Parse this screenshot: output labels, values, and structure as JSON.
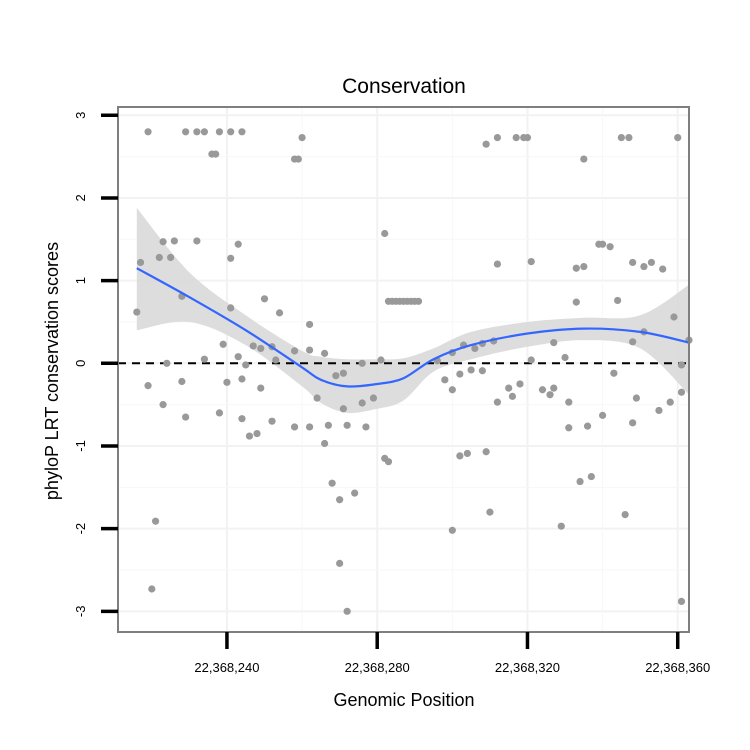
{
  "chart_data": {
    "type": "scatter",
    "title": "Conservation",
    "xlabel": "Genomic Position",
    "ylabel": "phyloP LRT conservation scores",
    "xlim": [
      22368211,
      22368363
    ],
    "ylim": [
      -3.25,
      3.1
    ],
    "x_ticks": [
      22368240,
      22368280,
      22368320,
      22368360
    ],
    "x_tick_labels": [
      "22,368,240",
      "22,368,280",
      "22,368,320",
      "22,368,360"
    ],
    "y_ticks": [
      -3,
      -2,
      -1,
      0,
      1,
      2,
      3
    ],
    "y_tick_labels": [
      "-3",
      "-2",
      "-1",
      "0",
      "1",
      "2",
      "3"
    ],
    "reference_line": {
      "y": 0,
      "style": "dashed",
      "color": "#000000"
    },
    "colors": {
      "points": "#999999",
      "smooth": "#3366ff",
      "ribbon": "#d9d9d9",
      "frame": "#7f7f7f",
      "grid": "#f2f2f2"
    },
    "points": [
      {
        "x": 22368219,
        "y": 2.8
      },
      {
        "x": 22368229,
        "y": 2.8
      },
      {
        "x": 22368232,
        "y": 2.8
      },
      {
        "x": 22368234,
        "y": 2.8
      },
      {
        "x": 22368238,
        "y": 2.8
      },
      {
        "x": 22368241,
        "y": 2.8
      },
      {
        "x": 22368244,
        "y": 2.8
      },
      {
        "x": 22368236,
        "y": 2.53
      },
      {
        "x": 22368237,
        "y": 2.53
      },
      {
        "x": 22368258,
        "y": 2.47
      },
      {
        "x": 22368259,
        "y": 2.47
      },
      {
        "x": 22368260,
        "y": 2.73
      },
      {
        "x": 22368309,
        "y": 2.65
      },
      {
        "x": 22368312,
        "y": 2.73
      },
      {
        "x": 22368317,
        "y": 2.73
      },
      {
        "x": 22368319,
        "y": 2.73
      },
      {
        "x": 22368320,
        "y": 2.73
      },
      {
        "x": 22368335,
        "y": 2.47
      },
      {
        "x": 22368345,
        "y": 2.73
      },
      {
        "x": 22368347,
        "y": 2.73
      },
      {
        "x": 22368360,
        "y": 2.73
      },
      {
        "x": 22368217,
        "y": 1.22
      },
      {
        "x": 22368222,
        "y": 1.28
      },
      {
        "x": 22368223,
        "y": 1.47
      },
      {
        "x": 22368225,
        "y": 1.28
      },
      {
        "x": 22368226,
        "y": 1.48
      },
      {
        "x": 22368232,
        "y": 1.48
      },
      {
        "x": 22368241,
        "y": 1.27
      },
      {
        "x": 22368243,
        "y": 1.44
      },
      {
        "x": 22368282,
        "y": 1.57
      },
      {
        "x": 22368312,
        "y": 1.2
      },
      {
        "x": 22368321,
        "y": 1.23
      },
      {
        "x": 22368333,
        "y": 1.15
      },
      {
        "x": 22368335,
        "y": 1.17
      },
      {
        "x": 22368339,
        "y": 1.44
      },
      {
        "x": 22368340,
        "y": 1.44
      },
      {
        "x": 22368342,
        "y": 1.41
      },
      {
        "x": 22368348,
        "y": 1.22
      },
      {
        "x": 22368351,
        "y": 1.17
      },
      {
        "x": 22368353,
        "y": 1.22
      },
      {
        "x": 22368356,
        "y": 1.14
      },
      {
        "x": 22368216,
        "y": 0.62
      },
      {
        "x": 22368228,
        "y": 0.81
      },
      {
        "x": 22368241,
        "y": 0.67
      },
      {
        "x": 22368250,
        "y": 0.78
      },
      {
        "x": 22368254,
        "y": 0.61
      },
      {
        "x": 22368262,
        "y": 0.47
      },
      {
        "x": 22368283,
        "y": 0.75
      },
      {
        "x": 22368284,
        "y": 0.75
      },
      {
        "x": 22368285,
        "y": 0.75
      },
      {
        "x": 22368286,
        "y": 0.75
      },
      {
        "x": 22368287,
        "y": 0.75
      },
      {
        "x": 22368288,
        "y": 0.75
      },
      {
        "x": 22368289,
        "y": 0.75
      },
      {
        "x": 22368290,
        "y": 0.75
      },
      {
        "x": 22368291,
        "y": 0.75
      },
      {
        "x": 22368333,
        "y": 0.74
      },
      {
        "x": 22368344,
        "y": 0.76
      },
      {
        "x": 22368359,
        "y": 0.56
      },
      {
        "x": 22368363,
        "y": 0.28
      },
      {
        "x": 22368239,
        "y": 0.23
      },
      {
        "x": 22368247,
        "y": 0.21
      },
      {
        "x": 22368249,
        "y": 0.18
      },
      {
        "x": 22368252,
        "y": 0.2
      },
      {
        "x": 22368258,
        "y": 0.15
      },
      {
        "x": 22368262,
        "y": 0.16
      },
      {
        "x": 22368266,
        "y": 0.12
      },
      {
        "x": 22368300,
        "y": 0.13
      },
      {
        "x": 22368303,
        "y": 0.22
      },
      {
        "x": 22368306,
        "y": 0.18
      },
      {
        "x": 22368308,
        "y": 0.24
      },
      {
        "x": 22368311,
        "y": 0.27
      },
      {
        "x": 22368327,
        "y": 0.25
      },
      {
        "x": 22368330,
        "y": 0.07
      },
      {
        "x": 22368348,
        "y": 0.26
      },
      {
        "x": 22368351,
        "y": 0.38
      },
      {
        "x": 22368224,
        "y": 0.0
      },
      {
        "x": 22368234,
        "y": 0.05
      },
      {
        "x": 22368243,
        "y": 0.08
      },
      {
        "x": 22368245,
        "y": -0.02
      },
      {
        "x": 22368253,
        "y": 0.04
      },
      {
        "x": 22368269,
        "y": -0.15
      },
      {
        "x": 22368271,
        "y": -0.12
      },
      {
        "x": 22368276,
        "y": 0.0
      },
      {
        "x": 22368281,
        "y": 0.04
      },
      {
        "x": 22368296,
        "y": 0.03
      },
      {
        "x": 22368298,
        "y": -0.2
      },
      {
        "x": 22368302,
        "y": -0.13
      },
      {
        "x": 22368305,
        "y": -0.08
      },
      {
        "x": 22368308,
        "y": -0.09
      },
      {
        "x": 22368321,
        "y": 0.04
      },
      {
        "x": 22368343,
        "y": -0.12
      },
      {
        "x": 22368361,
        "y": -0.02
      },
      {
        "x": 22368219,
        "y": -0.27
      },
      {
        "x": 22368228,
        "y": -0.22
      },
      {
        "x": 22368240,
        "y": -0.23
      },
      {
        "x": 22368244,
        "y": -0.19
      },
      {
        "x": 22368249,
        "y": -0.3
      },
      {
        "x": 22368264,
        "y": -0.42
      },
      {
        "x": 22368271,
        "y": -0.55
      },
      {
        "x": 22368276,
        "y": -0.48
      },
      {
        "x": 22368279,
        "y": -0.42
      },
      {
        "x": 22368300,
        "y": -0.32
      },
      {
        "x": 22368312,
        "y": -0.47
      },
      {
        "x": 22368315,
        "y": -0.3
      },
      {
        "x": 22368316,
        "y": -0.4
      },
      {
        "x": 22368318,
        "y": -0.25
      },
      {
        "x": 22368324,
        "y": -0.32
      },
      {
        "x": 22368326,
        "y": -0.38
      },
      {
        "x": 22368327,
        "y": -0.3
      },
      {
        "x": 22368331,
        "y": -0.47
      },
      {
        "x": 22368349,
        "y": -0.42
      },
      {
        "x": 22368355,
        "y": -0.57
      },
      {
        "x": 22368358,
        "y": -0.47
      },
      {
        "x": 22368361,
        "y": -0.35
      },
      {
        "x": 22368223,
        "y": -0.5
      },
      {
        "x": 22368229,
        "y": -0.65
      },
      {
        "x": 22368238,
        "y": -0.6
      },
      {
        "x": 22368244,
        "y": -0.67
      },
      {
        "x": 22368252,
        "y": -0.7
      },
      {
        "x": 22368258,
        "y": -0.77
      },
      {
        "x": 22368262,
        "y": -0.77
      },
      {
        "x": 22368267,
        "y": -0.75
      },
      {
        "x": 22368272,
        "y": -0.75
      },
      {
        "x": 22368277,
        "y": -0.77
      },
      {
        "x": 22368331,
        "y": -0.78
      },
      {
        "x": 22368336,
        "y": -0.76
      },
      {
        "x": 22368340,
        "y": -0.63
      },
      {
        "x": 22368348,
        "y": -0.72
      },
      {
        "x": 22368246,
        "y": -0.88
      },
      {
        "x": 22368248,
        "y": -0.85
      },
      {
        "x": 22368266,
        "y": -0.97
      },
      {
        "x": 22368282,
        "y": -1.15
      },
      {
        "x": 22368283,
        "y": -1.19
      },
      {
        "x": 22368302,
        "y": -1.12
      },
      {
        "x": 22368304,
        "y": -1.09
      },
      {
        "x": 22368309,
        "y": -1.07
      },
      {
        "x": 22368337,
        "y": -1.37
      },
      {
        "x": 22368334,
        "y": -1.43
      },
      {
        "x": 22368268,
        "y": -1.45
      },
      {
        "x": 22368274,
        "y": -1.57
      },
      {
        "x": 22368270,
        "y": -1.65
      },
      {
        "x": 22368221,
        "y": -1.91
      },
      {
        "x": 22368310,
        "y": -1.8
      },
      {
        "x": 22368300,
        "y": -2.02
      },
      {
        "x": 22368329,
        "y": -1.97
      },
      {
        "x": 22368346,
        "y": -1.83
      },
      {
        "x": 22368270,
        "y": -2.42
      },
      {
        "x": 22368220,
        "y": -2.73
      },
      {
        "x": 22368272,
        "y": -3.0
      },
      {
        "x": 22368361,
        "y": -2.88
      }
    ],
    "smooth_fit": {
      "x": [
        22368216,
        22368230,
        22368245,
        22368260,
        22368265,
        22368272,
        22368280,
        22368287,
        22368295,
        22368305,
        22368320,
        22368335,
        22368350,
        22368363
      ],
      "y": [
        1.15,
        0.8,
        0.4,
        -0.05,
        -0.2,
        -0.28,
        -0.25,
        -0.18,
        0.05,
        0.22,
        0.36,
        0.42,
        0.38,
        0.25
      ],
      "lower": [
        0.4,
        0.5,
        0.22,
        -0.28,
        -0.48,
        -0.6,
        -0.55,
        -0.45,
        -0.1,
        0.05,
        0.2,
        0.28,
        0.18,
        -0.38
      ],
      "upper": [
        1.88,
        1.1,
        0.58,
        0.15,
        0.08,
        0.05,
        0.05,
        0.06,
        0.18,
        0.38,
        0.5,
        0.55,
        0.58,
        0.95
      ]
    }
  }
}
